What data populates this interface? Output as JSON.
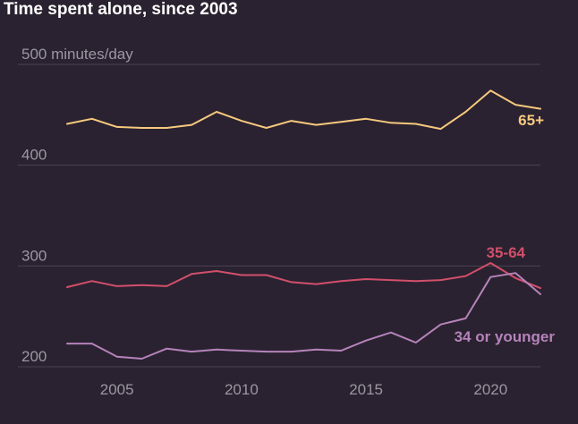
{
  "chart_data": {
    "type": "line",
    "title": "Time spent alone, since 2003",
    "ylabel": "minutes/day",
    "ylim": [
      200,
      500
    ],
    "yticks": [
      200,
      300,
      400,
      500
    ],
    "ytick_labels": [
      "200",
      "300",
      "400",
      "500 minutes/day"
    ],
    "xlim": [
      2003,
      2022
    ],
    "xticks": [
      2005,
      2010,
      2015,
      2020
    ],
    "xtick_labels": [
      "2005",
      "2010",
      "2015",
      "2020"
    ],
    "grid": true,
    "x": [
      2003,
      2004,
      2005,
      2006,
      2007,
      2008,
      2009,
      2010,
      2011,
      2012,
      2013,
      2014,
      2015,
      2016,
      2017,
      2018,
      2019,
      2020,
      2021,
      2022
    ],
    "series": [
      {
        "name": "65+",
        "color": "#f7c97e",
        "values": [
          441,
          446,
          438,
          437,
          437,
          440,
          453,
          444,
          437,
          444,
          440,
          443,
          446,
          442,
          441,
          436,
          453,
          474,
          460,
          456
        ]
      },
      {
        "name": "35-64",
        "color": "#d24f6b",
        "values": [
          279,
          285,
          280,
          281,
          280,
          292,
          295,
          291,
          291,
          284,
          282,
          285,
          287,
          286,
          285,
          286,
          290,
          303,
          288,
          278
        ]
      },
      {
        "name": "34 or younger",
        "color": "#b683bb",
        "values": [
          223,
          223,
          210,
          208,
          218,
          215,
          217,
          216,
          215,
          215,
          217,
          216,
          226,
          234,
          224,
          242,
          248,
          289,
          293,
          272
        ]
      }
    ]
  }
}
